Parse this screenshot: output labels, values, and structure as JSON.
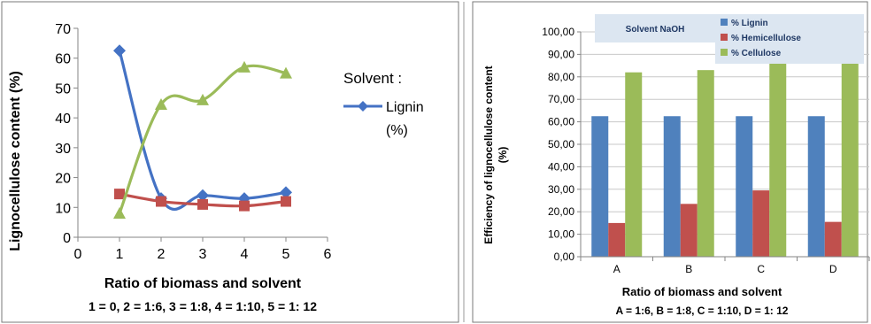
{
  "charts": {
    "left": {
      "ylabel": "Lignocellulose content (%)",
      "xlabel": "Ratio of biomass and solvent",
      "caption": "1 = 0, 2 = 1:6, 3 = 1:8, 4 = 1:10, 5 = 1: 12",
      "legend_title": "Solvent :",
      "legend_entry_line1": "Lignin",
      "legend_entry_line2": "(%)"
    },
    "right": {
      "ylabel_line1": "Efficiency of lignocellulose content",
      "ylabel_line2": "(%)",
      "xlabel": "Ratio of biomass and solvent",
      "caption": "A = 1:6, B = 1:8, C = 1:10, D = 1: 12",
      "box_label": "Solvent NaOH"
    }
  },
  "chart_data": [
    {
      "type": "line",
      "x": [
        1,
        2,
        3,
        4,
        5
      ],
      "xlim": [
        0,
        6
      ],
      "xticks": [
        "0",
        "1",
        "2",
        "3",
        "4",
        "5",
        "6"
      ],
      "ylim": [
        0,
        70
      ],
      "yticks": [
        "0",
        "10",
        "20",
        "30",
        "40",
        "50",
        "60",
        "70"
      ],
      "ylabel": "Lignocellulose content (%)",
      "xlabel": "Ratio of biomass and solvent",
      "grid": false,
      "legend_placement": "right",
      "series": [
        {
          "name": "Lignin (%)",
          "color": "#4472C4",
          "marker": "diamond",
          "values": [
            62.5,
            13,
            14,
            13,
            15
          ]
        },
        {
          "color": "#C0504D",
          "marker": "square",
          "values": [
            14.5,
            12,
            11,
            10.5,
            12
          ]
        },
        {
          "color": "#9BBB59",
          "marker": "triangle",
          "values": [
            8,
            44.5,
            46,
            57,
            55
          ]
        }
      ]
    },
    {
      "type": "bar",
      "categories": [
        "A",
        "B",
        "C",
        "D"
      ],
      "ylim": [
        0,
        100
      ],
      "yticks": [
        "0,00",
        "10,00",
        "20,00",
        "30,00",
        "40,00",
        "50,00",
        "60,00",
        "70,00",
        "80,00",
        "90,00",
        "100,00"
      ],
      "ylabel": "Efficiency of lignocellulose content (%)",
      "xlabel": "Ratio of biomass and solvent",
      "grid": true,
      "legend_placement": "top-right",
      "series": [
        {
          "name": "% Lignin",
          "color": "#4F81BD",
          "values": [
            62.5,
            62.5,
            62.5,
            62.5
          ]
        },
        {
          "name": "% Hemicellulose",
          "color": "#C0504D",
          "values": [
            15,
            23.5,
            29.5,
            15.5
          ]
        },
        {
          "name": "% Cellulose",
          "color": "#9BBB59",
          "values": [
            82,
            83,
            86,
            86
          ]
        }
      ]
    }
  ]
}
